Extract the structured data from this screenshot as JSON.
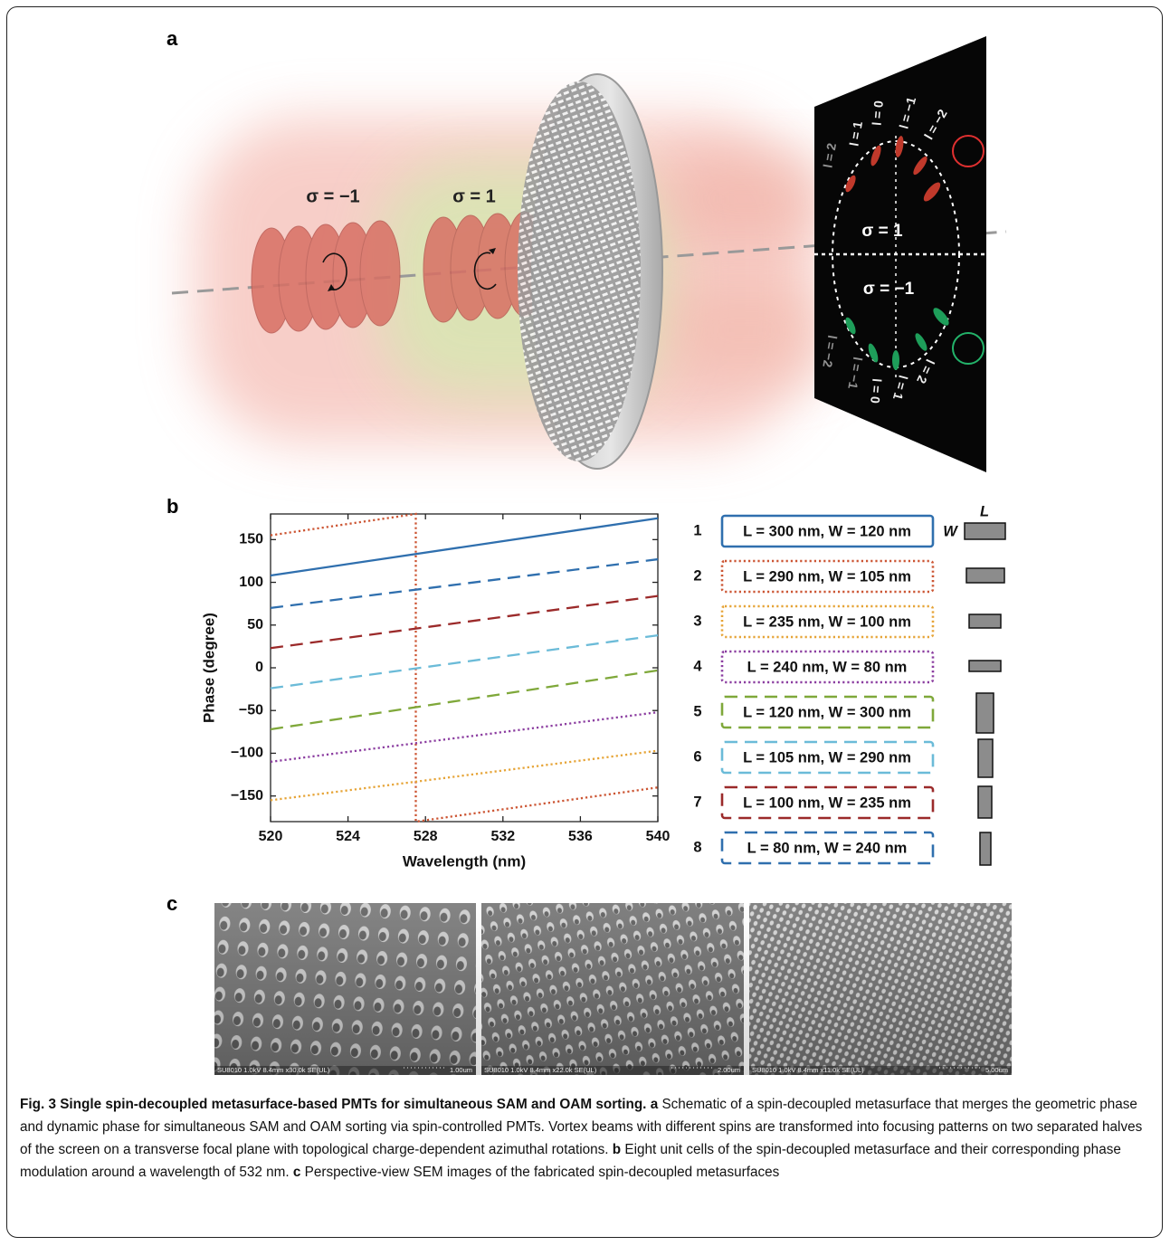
{
  "panel_labels": [
    "a",
    "b",
    "c"
  ],
  "panel_a": {
    "beam_labels": [
      "σ = −1",
      "σ = 1"
    ],
    "screen_labels": [
      "σ = 1",
      "σ = −1"
    ],
    "top_charges": [
      "l = 2",
      "l = 1",
      "l = 0",
      "l = −1",
      "l = −2"
    ],
    "bottom_charges": [
      "l = −2",
      "l = −1",
      "l = 0",
      "l = 1",
      "l = 2"
    ]
  },
  "chart_data": {
    "type": "line",
    "x_label": "Wavelength (nm)",
    "y_label": "Phase (degree)",
    "xlim": [
      520,
      540
    ],
    "xticks": [
      520,
      524,
      528,
      532,
      536,
      540
    ],
    "ylim": [
      -180,
      180
    ],
    "yticks": [
      {
        "value": -150,
        "label": "−150"
      },
      {
        "value": -100,
        "label": "−100"
      },
      {
        "value": -50,
        "label": "−50"
      },
      0,
      50,
      100,
      150
    ],
    "series": [
      {
        "name": "L = 300 nm, W = 120 nm",
        "color": "#2f6fae",
        "dash": "solid",
        "x": [
          520,
          540
        ],
        "values": [
          108,
          175
        ]
      },
      {
        "name": "L = 290 nm, W = 105 nm",
        "color": "#cc5533",
        "dash": "dotted",
        "x": [
          520,
          527.5,
          527.5,
          540
        ],
        "values": [
          155,
          180,
          -180,
          -140
        ]
      },
      {
        "name": "L = 235 nm, W = 100 nm",
        "color": "#e6a437",
        "dash": "dotted",
        "x": [
          520,
          540
        ],
        "values": [
          -155,
          -97
        ]
      },
      {
        "name": "L = 240 nm, W = 80 nm",
        "color": "#8b3da0",
        "dash": "dotted",
        "x": [
          520,
          540
        ],
        "values": [
          -110,
          -52
        ]
      },
      {
        "name": "L = 120 nm, W = 300 nm",
        "color": "#7fa83a",
        "dash": "dashed",
        "x": [
          520,
          540
        ],
        "values": [
          -72,
          -3
        ]
      },
      {
        "name": "L = 105 nm, W = 290 nm",
        "color": "#6bbbd8",
        "dash": "dashed",
        "x": [
          520,
          540
        ],
        "values": [
          -24,
          38
        ]
      },
      {
        "name": "L = 100 nm, W = 235 nm",
        "color": "#9b2a2a",
        "dash": "dashed",
        "x": [
          520,
          540
        ],
        "values": [
          23,
          84
        ]
      },
      {
        "name": "L = 80 nm, W = 240 nm",
        "color": "#2f6fae",
        "dash": "dashed",
        "x": [
          520,
          540
        ],
        "values": [
          70,
          127
        ]
      }
    ]
  },
  "unit_cells": {
    "indices": [
      "1",
      "2",
      "3",
      "4",
      "5",
      "6",
      "7",
      "8"
    ],
    "length_symbol": "L",
    "width_symbol": "W"
  },
  "panel_c": {
    "images": [
      {
        "info": "SU8010 1.0kV 8.4mm x30.0k SE(UL)",
        "scale": "1.00um"
      },
      {
        "info": "SU8010 1.0kV 8.4mm x22.0k SE(UL)",
        "scale": "2.00um"
      },
      {
        "info": "SU8010 1.0kV 8.4mm x11.0k SE(UL)",
        "scale": "5.00um"
      }
    ]
  },
  "caption": [
    {
      "text": "Fig. 3 Single spin-decoupled metasurface-based PMTs for simultaneous SAM and OAM sorting.",
      "bold": true
    },
    {
      "text": "a",
      "bold": true
    },
    {
      "text": "Schematic of a spin-decoupled metasurface that merges the geometric phase and dynamic phase for simultaneous SAM and OAM sorting via spin-controlled PMTs. Vortex beams with different spins are transformed into focusing patterns on two separated halves of the screen on a transverse focal plane with topological charge-dependent azimuthal rotations.",
      "bold": false
    },
    {
      "text": "b",
      "bold": true
    },
    {
      "text": "Eight unit cells of the spin-decoupled metasurface and their corresponding phase modulation around a wavelength of 532 nm.",
      "bold": false
    },
    {
      "text": "c",
      "bold": true
    },
    {
      "text": "Perspective-view SEM images of the fabricated spin-decoupled metasurfaces",
      "bold": false
    }
  ]
}
